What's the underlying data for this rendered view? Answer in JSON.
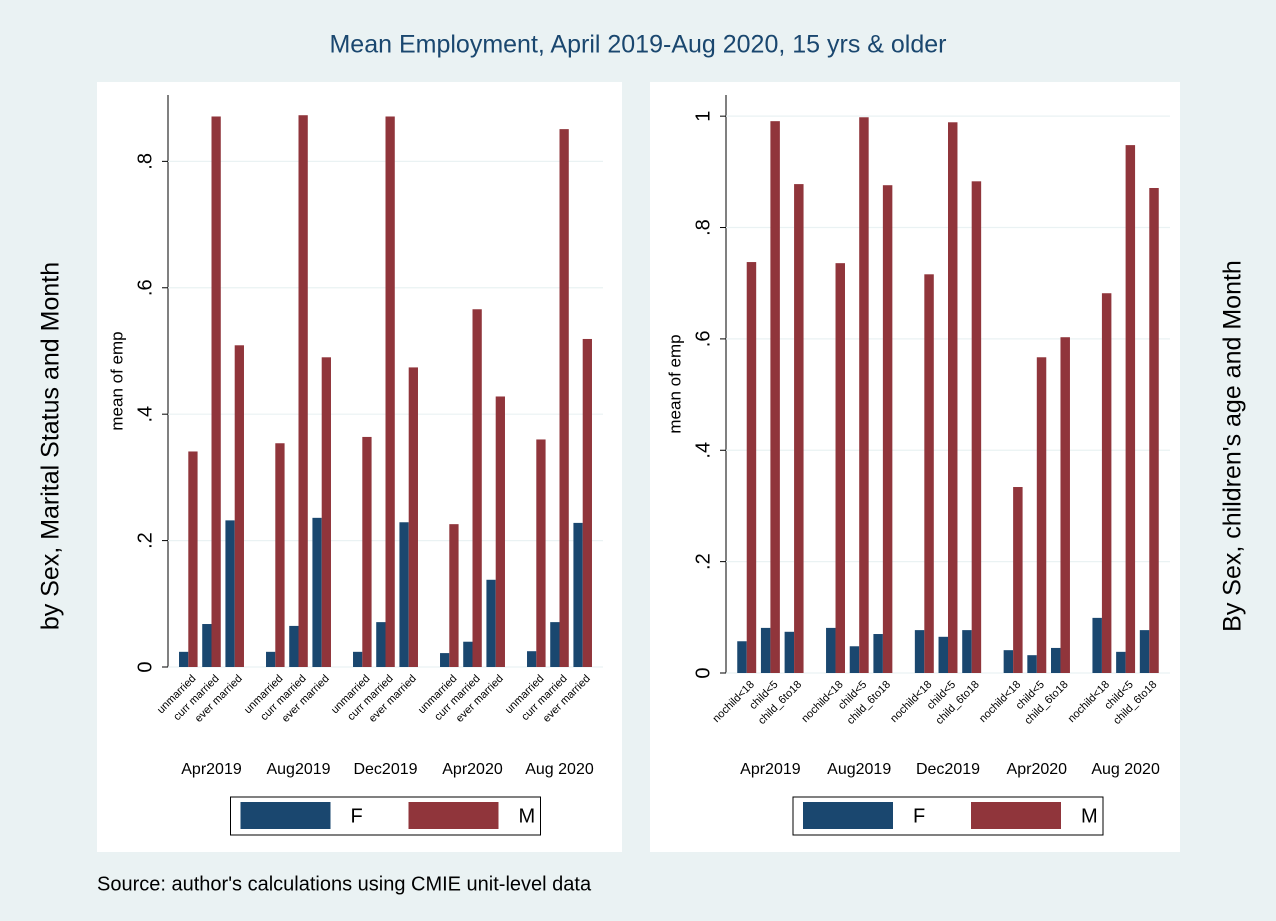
{
  "title": "Mean Employment, April 2019-Aug 2020, 15 yrs & older",
  "note": "Source: author's calculations using CMIE unit-level data",
  "chart_data": [
    {
      "type": "bar",
      "side_title": "by Sex, Marital Status and Month",
      "y_label": "mean of emp",
      "groups": [
        "Apr2019",
        "Aug2019",
        "Dec2019",
        "Apr2020",
        "Aug 2020"
      ],
      "categories": [
        "unmarried",
        "curr married",
        "ever married",
        "unmarried",
        "curr married",
        "ever married",
        "unmarried",
        "curr married",
        "ever married",
        "unmarried",
        "curr married",
        "ever married",
        "unmarried",
        "curr married",
        "ever married"
      ],
      "series": [
        {
          "name": "F",
          "color": "#1a476f",
          "values": [
            0.024,
            0.068,
            0.232,
            0.024,
            0.065,
            0.236,
            0.024,
            0.071,
            0.229,
            0.022,
            0.04,
            0.138,
            0.025,
            0.071,
            0.228
          ]
        },
        {
          "name": "M",
          "color": "#90353b",
          "values": [
            0.341,
            0.871,
            0.509,
            0.354,
            0.873,
            0.49,
            0.364,
            0.871,
            0.474,
            0.226,
            0.566,
            0.428,
            0.36,
            0.851,
            0.519
          ]
        }
      ],
      "ylim": [
        0,
        0.905
      ],
      "yticks": [
        0,
        {
          "value": 0.2,
          "label": ".2"
        },
        {
          "value": 0.4,
          "label": ".4"
        },
        {
          "value": 0.6,
          "label": ".6"
        },
        {
          "value": 0.8,
          "label": ".8"
        }
      ],
      "grid": true
    },
    {
      "type": "bar",
      "side_title": "By Sex, children's age and Month",
      "y_label": "mean of emp",
      "groups": [
        "Apr2019",
        "Aug2019",
        "Dec2019",
        "Apr2020",
        "Aug 2020"
      ],
      "categories": [
        "nochild<18",
        "child<5",
        "child_6to18",
        "nochild<18",
        "child<5",
        "child_6to18",
        "nochild<18",
        "child<5",
        "child_6to18",
        "nochild<18",
        "child<5",
        "child_6to18",
        "nochild<18",
        "child<5",
        "child_6to18"
      ],
      "series": [
        {
          "name": "F",
          "color": "#1a476f",
          "values": [
            0.057,
            0.081,
            0.074,
            0.081,
            0.048,
            0.07,
            0.077,
            0.065,
            0.077,
            0.041,
            0.032,
            0.045,
            0.099,
            0.038,
            0.077
          ]
        },
        {
          "name": "M",
          "color": "#90353b",
          "values": [
            0.738,
            0.991,
            0.878,
            0.736,
            0.998,
            0.876,
            0.716,
            0.989,
            0.883,
            0.334,
            0.567,
            0.603,
            0.682,
            0.948,
            0.871
          ]
        }
      ],
      "ylim": [
        0,
        1.038
      ],
      "yticks": [
        0,
        {
          "value": 0.2,
          "label": ".2"
        },
        {
          "value": 0.4,
          "label": ".4"
        },
        {
          "value": 0.6,
          "label": ".6"
        },
        {
          "value": 0.8,
          "label": ".8"
        },
        1
      ],
      "grid": true
    }
  ]
}
